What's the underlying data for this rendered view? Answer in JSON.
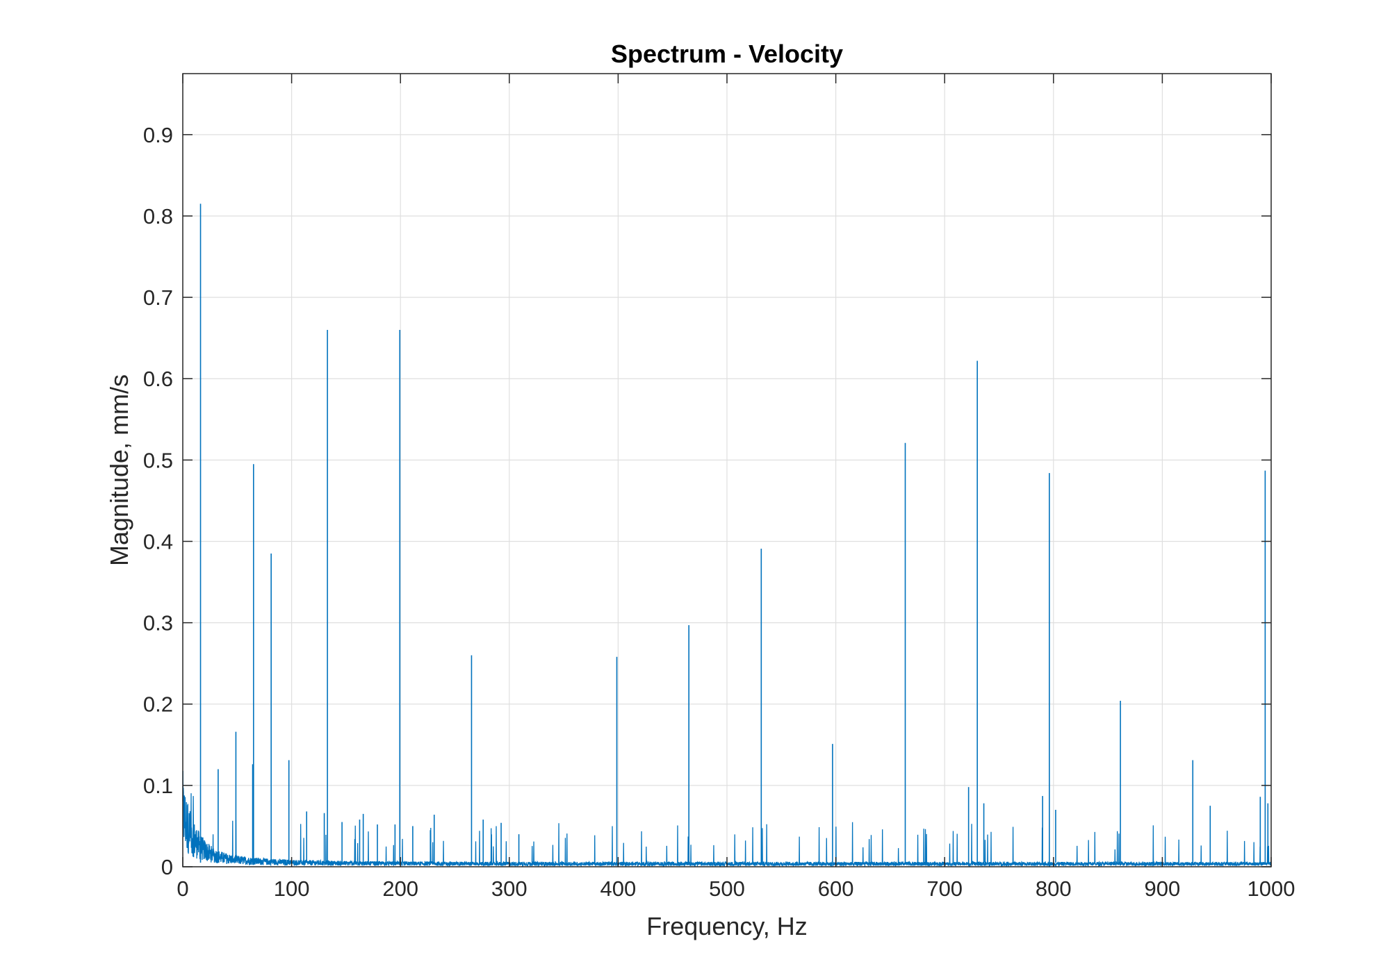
{
  "chart_data": {
    "type": "line",
    "title": "Spectrum - Velocity",
    "xlabel": "Frequency, Hz",
    "ylabel": "Magnitude, mm/s",
    "xlim": [
      0,
      1000
    ],
    "ylim": [
      0,
      0.975
    ],
    "x_ticks": [
      "0",
      "100",
      "200",
      "300",
      "400",
      "500",
      "600",
      "700",
      "800",
      "900",
      "1000"
    ],
    "y_ticks": [
      "0",
      "0.1",
      "0.2",
      "0.3",
      "0.4",
      "0.5",
      "0.6",
      "0.7",
      "0.8",
      "0.9"
    ],
    "grid": true,
    "series_color": "#0072BD",
    "peaks": [
      {
        "x": 16.3,
        "y": 0.815
      },
      {
        "x": 32.5,
        "y": 0.12
      },
      {
        "x": 48.8,
        "y": 0.166
      },
      {
        "x": 65.0,
        "y": 0.495
      },
      {
        "x": 64.2,
        "y": 0.126
      },
      {
        "x": 81.2,
        "y": 0.385
      },
      {
        "x": 97.5,
        "y": 0.131
      },
      {
        "x": 113.8,
        "y": 0.068
      },
      {
        "x": 130.0,
        "y": 0.066
      },
      {
        "x": 132.9,
        "y": 0.66
      },
      {
        "x": 146.3,
        "y": 0.055
      },
      {
        "x": 162.5,
        "y": 0.058
      },
      {
        "x": 165.8,
        "y": 0.065
      },
      {
        "x": 178.8,
        "y": 0.052
      },
      {
        "x": 195.0,
        "y": 0.052
      },
      {
        "x": 199.4,
        "y": 0.66
      },
      {
        "x": 211.3,
        "y": 0.05
      },
      {
        "x": 227.5,
        "y": 0.045
      },
      {
        "x": 231.0,
        "y": 0.064
      },
      {
        "x": 265.3,
        "y": 0.26
      },
      {
        "x": 276.0,
        "y": 0.058
      },
      {
        "x": 292.5,
        "y": 0.054
      },
      {
        "x": 308.8,
        "y": 0.04
      },
      {
        "x": 398.8,
        "y": 0.258
      },
      {
        "x": 465.0,
        "y": 0.297
      },
      {
        "x": 531.5,
        "y": 0.391
      },
      {
        "x": 597.0,
        "y": 0.151
      },
      {
        "x": 663.8,
        "y": 0.521
      },
      {
        "x": 722.0,
        "y": 0.098
      },
      {
        "x": 730.0,
        "y": 0.622
      },
      {
        "x": 736.0,
        "y": 0.078
      },
      {
        "x": 790.0,
        "y": 0.087
      },
      {
        "x": 796.2,
        "y": 0.484
      },
      {
        "x": 802.0,
        "y": 0.07
      },
      {
        "x": 861.5,
        "y": 0.204
      },
      {
        "x": 928.0,
        "y": 0.131
      },
      {
        "x": 944.0,
        "y": 0.075
      },
      {
        "x": 990.0,
        "y": 0.086
      },
      {
        "x": 994.5,
        "y": 0.487
      },
      {
        "x": 997.0,
        "y": 0.078
      }
    ]
  }
}
